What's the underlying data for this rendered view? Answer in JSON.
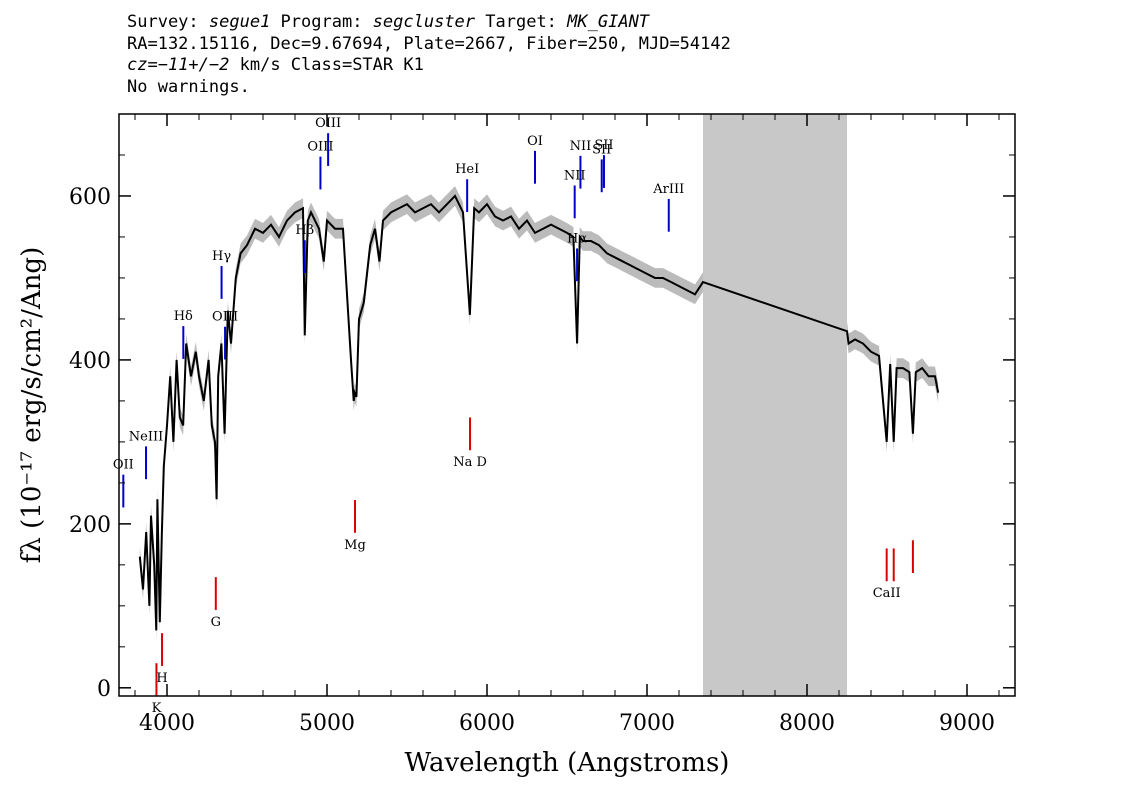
{
  "header": {
    "line1": {
      "survey_label": "Survey: ",
      "survey": "segue1",
      "program_label": " Program: ",
      "program": "segcluster",
      "target_label": " Target: ",
      "target": "MK_GIANT"
    },
    "line2": "RA=132.15116, Dec=9.67694, Plate=2667, Fiber=250, MJD=54142",
    "line3": {
      "cz_label": "cz=",
      "cz_value": "−11+/−2",
      "rest": " km/s Class=STAR K1"
    },
    "line4": "No warnings."
  },
  "chart_data": {
    "type": "line",
    "xlabel": "Wavelength (Angstroms)",
    "ylabel": "fλ (10⁻¹⁷ erg/s/cm²/Ang)",
    "xlim": [
      3700,
      9300
    ],
    "ylim": [
      -10,
      700
    ],
    "xticks": [
      4000,
      5000,
      6000,
      7000,
      8000,
      9000
    ],
    "yticks": [
      0,
      200,
      400,
      600
    ],
    "masked_region": [
      7350,
      8250
    ],
    "colors": {
      "spectrum": "#000000",
      "error": "#bbbbbb",
      "emission": "#0000cc",
      "absorption": "#dd0000",
      "mask": "#c8c8c8"
    },
    "series": [
      {
        "x": [
          3830,
          3850,
          3870,
          3890,
          3900,
          3920,
          3933,
          3940,
          3955,
          3968,
          3980,
          4000,
          4020,
          4040,
          4060,
          4080,
          4101,
          4120,
          4150,
          4180,
          4200,
          4230,
          4260,
          4280,
          4300,
          4310,
          4320,
          4340,
          4360,
          4380,
          4400,
          4430,
          4460,
          4500,
          4550,
          4600,
          4650,
          4700,
          4750,
          4800,
          4850,
          4861,
          4880,
          4900,
          4950,
          4980,
          5000,
          5050,
          5100,
          5150,
          5167,
          5173,
          5184,
          5200,
          5230,
          5270,
          5300,
          5328,
          5350,
          5400,
          5450,
          5500,
          5550,
          5600,
          5650,
          5700,
          5750,
          5800,
          5850,
          5893,
          5920,
          5950,
          6000,
          6050,
          6100,
          6150,
          6200,
          6250,
          6300,
          6350,
          6400,
          6450,
          6500,
          6540,
          6563,
          6580,
          6600,
          6650,
          6700,
          6750,
          6800,
          6850,
          6900,
          6950,
          7000,
          7050,
          7100,
          7150,
          7200,
          7250,
          7300,
          7350,
          8250,
          8260,
          8300,
          8350,
          8400,
          8450,
          8498,
          8520,
          8542,
          8560,
          8600,
          8640,
          8662,
          8680,
          8720,
          8760,
          8800,
          8820
        ],
        "y": [
          160,
          120,
          190,
          100,
          210,
          150,
          70,
          230,
          80,
          190,
          270,
          320,
          380,
          300,
          400,
          330,
          320,
          420,
          380,
          410,
          380,
          350,
          400,
          320,
          300,
          230,
          380,
          420,
          310,
          460,
          420,
          500,
          530,
          540,
          560,
          555,
          565,
          550,
          570,
          580,
          585,
          430,
          570,
          580,
          560,
          520,
          570,
          560,
          560,
          400,
          350,
          360,
          355,
          450,
          470,
          540,
          560,
          520,
          570,
          580,
          585,
          590,
          580,
          585,
          590,
          580,
          590,
          600,
          580,
          455,
          585,
          580,
          590,
          575,
          570,
          575,
          560,
          570,
          555,
          560,
          565,
          560,
          555,
          550,
          420,
          550,
          545,
          545,
          540,
          530,
          525,
          520,
          515,
          510,
          505,
          500,
          500,
          495,
          490,
          485,
          480,
          495,
          435,
          420,
          425,
          420,
          410,
          405,
          300,
          395,
          300,
          390,
          390,
          385,
          310,
          385,
          390,
          380,
          380,
          360
        ]
      }
    ],
    "emission_lines": [
      {
        "label": "OII",
        "x": 3727
      },
      {
        "label": "NeIII",
        "x": 3869
      },
      {
        "label": "Hδ",
        "x": 4102
      },
      {
        "label": "Hγ",
        "x": 4341
      },
      {
        "label": "OIII",
        "x": 4363
      },
      {
        "label": "Hβ",
        "x": 4861
      },
      {
        "label": "OIII",
        "x": 4959
      },
      {
        "label": "OIII",
        "x": 5007
      },
      {
        "label": "HeI",
        "x": 5876
      },
      {
        "label": "OI",
        "x": 6300
      },
      {
        "label": "NII",
        "x": 6548
      },
      {
        "label": "Hα",
        "x": 6563
      },
      {
        "label": "NII",
        "x": 6584
      },
      {
        "label": "SII",
        "x": 6717
      },
      {
        "label": "SII",
        "x": 6731
      },
      {
        "label": "ArIII",
        "x": 7136
      }
    ],
    "absorption_lines": [
      {
        "label": "K",
        "x": 3934
      },
      {
        "label": "H",
        "x": 3969
      },
      {
        "label": "G",
        "x": 4305
      },
      {
        "label": "Mg",
        "x": 5175
      },
      {
        "label": "Na D",
        "x": 5894
      },
      {
        "label": "CaII",
        "x": 8498
      },
      {
        "label": "",
        "x": 8542
      },
      {
        "label": "",
        "x": 8662
      }
    ]
  }
}
